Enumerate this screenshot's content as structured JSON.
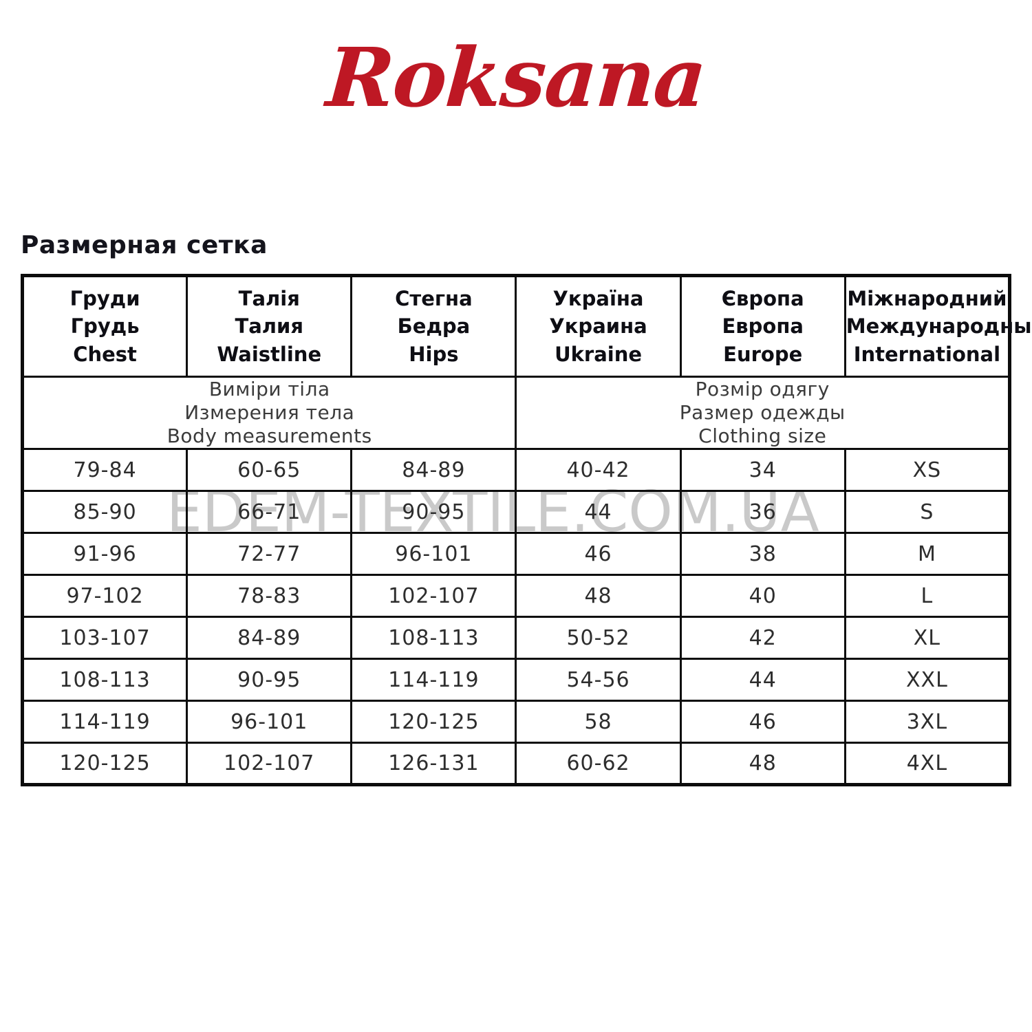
{
  "brand": {
    "logo_text": "Roksana",
    "logo_color": "#be1824"
  },
  "page_title": "Размерная сетка",
  "watermark": {
    "text": "EDEM-TEXTILE.COM.UA"
  },
  "table": {
    "columns": [
      {
        "id": "chest",
        "lines": [
          "Груди",
          "Грудь",
          "Chest"
        ]
      },
      {
        "id": "waistline",
        "lines": [
          "Талія",
          "Талия",
          "Waistline"
        ]
      },
      {
        "id": "hips",
        "lines": [
          "Стегна",
          "Бедра",
          "Hips"
        ]
      },
      {
        "id": "ukraine",
        "lines": [
          "Україна",
          "Украина",
          "Ukraine"
        ]
      },
      {
        "id": "europe",
        "lines": [
          "Європа",
          "Европа",
          "Europe"
        ]
      },
      {
        "id": "international",
        "lines": [
          "Міжнародний",
          "Международный",
          "International"
        ]
      }
    ],
    "group_headers": [
      {
        "id": "body-measurements",
        "lines": [
          "Виміри тіла",
          "Измерения тела",
          "Body measurements"
        ]
      },
      {
        "id": "clothing-size",
        "lines": [
          "Розмір одягу",
          "Размер одежды",
          "Clothing size"
        ]
      }
    ],
    "rows": [
      [
        "79-84",
        "60-65",
        "84-89",
        "40-42",
        "34",
        "XS"
      ],
      [
        "85-90",
        "66-71",
        "90-95",
        "44",
        "36",
        "S"
      ],
      [
        "91-96",
        "72-77",
        "96-101",
        "46",
        "38",
        "M"
      ],
      [
        "97-102",
        "78-83",
        "102-107",
        "48",
        "40",
        "L"
      ],
      [
        "103-107",
        "84-89",
        "108-113",
        "50-52",
        "42",
        "XL"
      ],
      [
        "108-113",
        "90-95",
        "114-119",
        "54-56",
        "44",
        "XXL"
      ],
      [
        "114-119",
        "96-101",
        "120-125",
        "58",
        "46",
        "3XL"
      ],
      [
        "120-125",
        "102-107",
        "126-131",
        "60-62",
        "48",
        "4XL"
      ]
    ]
  }
}
